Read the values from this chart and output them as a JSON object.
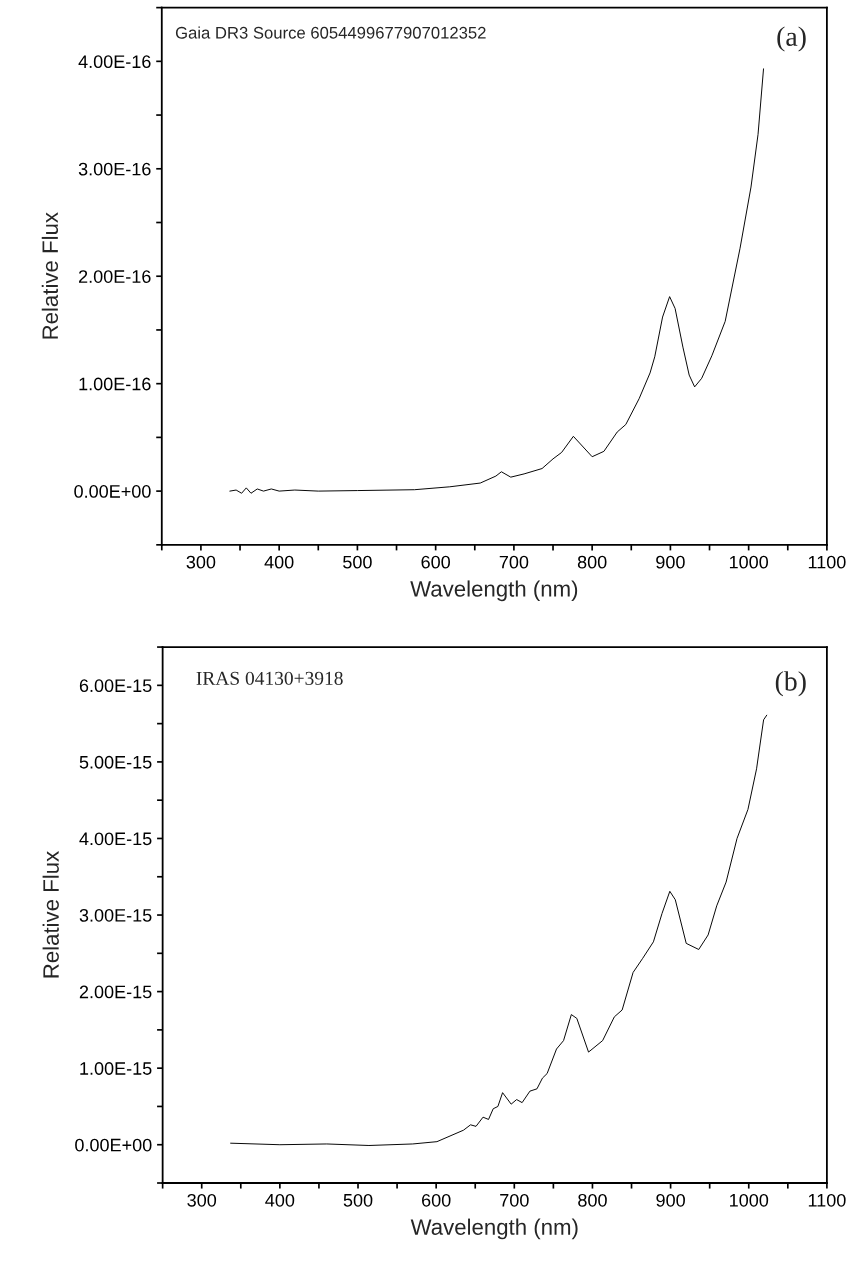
{
  "chart_data": [
    {
      "type": "line",
      "xlabel": "Wavelength (nm)",
      "ylabel": "Relative Flux",
      "annotations": [
        "Gaia DR3 Source 6054499677907012352",
        "(a)"
      ],
      "xlim": [
        250,
        1100
      ],
      "xticks": [
        {
          "value": 250,
          "label": null
        },
        300,
        {
          "value": 350,
          "label": null
        },
        400,
        {
          "value": 450,
          "label": null
        },
        500,
        {
          "value": 550,
          "label": null
        },
        600,
        {
          "value": 650,
          "label": null
        },
        700,
        {
          "value": 750,
          "label": null
        },
        800,
        {
          "value": 850,
          "label": null
        },
        900,
        {
          "value": 950,
          "label": null
        },
        1000,
        {
          "value": 1050,
          "label": null
        },
        1100
      ],
      "ylim": [
        -5e-17,
        4.5e-16
      ],
      "yticks": [
        {
          "value": -5e-17,
          "label": null
        },
        {
          "value": 0,
          "label": "0.00E+00"
        },
        {
          "value": 5e-17,
          "label": null
        },
        {
          "value": 1e-16,
          "label": "1.00E-16"
        },
        {
          "value": 1.5e-16,
          "label": null
        },
        {
          "value": 2e-16,
          "label": "2.00E-16"
        },
        {
          "value": 2.5e-16,
          "label": null
        },
        {
          "value": 3e-16,
          "label": "3.00E-16"
        },
        {
          "value": 3.5e-16,
          "label": null
        },
        {
          "value": 4e-16,
          "label": "4.00E-16"
        },
        {
          "value": 4.5e-16,
          "label": null
        }
      ],
      "grid": false,
      "legend": false,
      "marker": "none",
      "line_style": "solid",
      "series": [
        {
          "color": "#000000",
          "x": [
            337,
            345,
            352,
            358,
            364,
            372,
            380,
            390,
            400,
            420,
            450,
            500,
            573,
            618,
            657,
            677,
            684,
            696,
            713,
            736,
            750,
            761,
            776,
            800,
            815,
            832,
            843,
            860,
            874,
            880,
            890,
            899,
            906,
            916,
            924,
            931,
            940,
            953,
            970,
            989,
            1003,
            1012,
            1019
          ],
          "values": [
            0,
            1e-18,
            -2e-18,
            3e-18,
            -2e-18,
            2e-18,
            0,
            2e-18,
            0,
            1e-18,
            0,
            5e-19,
            1.3e-18,
            4e-18,
            7.5e-18,
            1.4e-17,
            1.8e-17,
            1.3e-17,
            1.6e-17,
            2.1e-17,
            3e-17,
            3.6e-17,
            5.1e-17,
            3.2e-17,
            3.7e-17,
            5.5e-17,
            6.2e-17,
            8.6e-17,
            1.1e-16,
            1.25e-16,
            1.62e-16,
            1.81e-16,
            1.7e-16,
            1.34e-16,
            1.08e-16,
            9.7e-17,
            1.05e-16,
            1.26e-16,
            1.58e-16,
            2.26e-16,
            2.83e-16,
            3.32e-16,
            3.93e-16
          ]
        }
      ]
    },
    {
      "type": "line",
      "xlabel": "Wavelength (nm)",
      "ylabel": "Relative Flux",
      "annotations": [
        "IRAS 04130+3918",
        "(b)"
      ],
      "xlim": [
        250,
        1100
      ],
      "xticks": [
        {
          "value": 250,
          "label": null
        },
        300,
        {
          "value": 350,
          "label": null
        },
        400,
        {
          "value": 450,
          "label": null
        },
        500,
        {
          "value": 550,
          "label": null
        },
        600,
        {
          "value": 650,
          "label": null
        },
        700,
        {
          "value": 750,
          "label": null
        },
        800,
        {
          "value": 850,
          "label": null
        },
        900,
        {
          "value": 950,
          "label": null
        },
        1000,
        {
          "value": 1050,
          "label": null
        },
        1100
      ],
      "ylim": [
        -5e-16,
        6.5e-15
      ],
      "yticks": [
        {
          "value": -5e-16,
          "label": null
        },
        {
          "value": 0,
          "label": "0.00E+00"
        },
        {
          "value": 5e-16,
          "label": null
        },
        {
          "value": 1e-15,
          "label": "1.00E-15"
        },
        {
          "value": 1.5e-15,
          "label": null
        },
        {
          "value": 2e-15,
          "label": "2.00E-15"
        },
        {
          "value": 2.5e-15,
          "label": null
        },
        {
          "value": 3e-15,
          "label": "3.00E-15"
        },
        {
          "value": 3.5e-15,
          "label": null
        },
        {
          "value": 4e-15,
          "label": "4.00E-15"
        },
        {
          "value": 4.5e-15,
          "label": null
        },
        {
          "value": 5e-15,
          "label": "5.00E-15"
        },
        {
          "value": 5.5e-15,
          "label": null
        },
        {
          "value": 6e-15,
          "label": "6.00E-15"
        },
        {
          "value": 6.5e-15,
          "label": null
        }
      ],
      "grid": false,
      "legend": false,
      "marker": "none",
      "line_style": "solid",
      "series": [
        {
          "color": "#000000",
          "x": [
            337,
            400,
            460,
            514,
            570,
            601,
            635,
            644,
            651,
            660,
            667,
            673,
            679,
            685,
            696,
            703,
            710,
            720,
            729,
            736,
            742,
            754,
            763,
            773,
            780,
            795,
            813,
            828,
            838,
            852,
            864,
            878,
            889,
            899,
            906,
            920,
            936,
            948,
            959,
            971,
            985,
            999,
            1010,
            1019,
            1023
          ],
          "values": [
            2e-17,
            0.0,
            1e-17,
            -1e-17,
            1e-17,
            4e-17,
            1.9e-16,
            2.6e-16,
            2.4e-16,
            3.6e-16,
            3.3e-16,
            4.7e-16,
            5e-16,
            6.8e-16,
            5.3e-16,
            5.9e-16,
            5.5e-16,
            7e-16,
            7.3e-16,
            8.7e-16,
            9.3e-16,
            1.25e-15,
            1.36e-15,
            1.7e-15,
            1.65e-15,
            1.21e-15,
            1.36e-15,
            1.67e-15,
            1.76e-15,
            2.25e-15,
            2.43e-15,
            2.65e-15,
            3.02e-15,
            3.31e-15,
            3.2e-15,
            2.63e-15,
            2.55e-15,
            2.74e-15,
            3.12e-15,
            3.43e-15,
            4e-15,
            4.38e-15,
            4.91e-15,
            5.55e-15,
            5.61e-15
          ]
        }
      ]
    }
  ]
}
